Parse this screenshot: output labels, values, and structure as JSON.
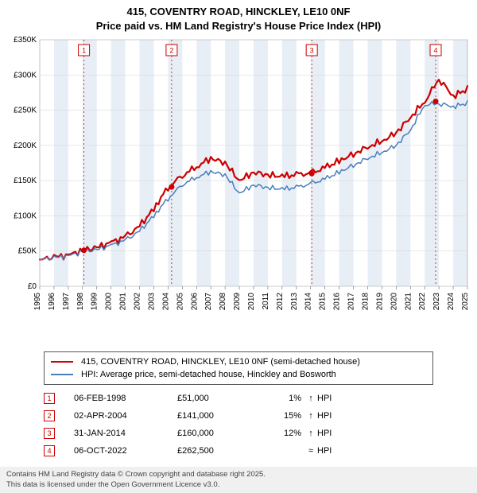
{
  "title_line1": "415, COVENTRY ROAD, HINCKLEY, LE10 0NF",
  "title_line2": "Price paid vs. HM Land Registry's House Price Index (HPI)",
  "chart": {
    "type": "line",
    "plot_bg": "#ffffff",
    "grid_color": "#d9d9d9",
    "band_color": "#e8eef6",
    "marker_border": "#cc0000",
    "marker_text": "#cc0000",
    "x_years": [
      1995,
      1996,
      1997,
      1998,
      1999,
      2000,
      2001,
      2002,
      2003,
      2004,
      2005,
      2006,
      2007,
      2008,
      2009,
      2010,
      2011,
      2012,
      2013,
      2014,
      2015,
      2016,
      2017,
      2018,
      2019,
      2020,
      2021,
      2022,
      2023,
      2024,
      2025
    ],
    "y_min": 0,
    "y_max": 350000,
    "y_tick_step": 50000,
    "y_tick_labels": [
      "£0",
      "£50K",
      "£100K",
      "£150K",
      "£200K",
      "£250K",
      "£300K",
      "£350K"
    ],
    "label_fontsize": 11,
    "tick_fontsize": 10,
    "series": [
      {
        "name": "price_paid",
        "color": "#cc0000",
        "width": 2.2,
        "points": [
          [
            1995,
            38000
          ],
          [
            1996,
            41000
          ],
          [
            1997,
            44000
          ],
          [
            1998,
            51000
          ],
          [
            1999,
            55000
          ],
          [
            2000,
            62000
          ],
          [
            2001,
            70000
          ],
          [
            2002,
            85000
          ],
          [
            2003,
            110000
          ],
          [
            2004,
            141000
          ],
          [
            2005,
            158000
          ],
          [
            2006,
            170000
          ],
          [
            2007,
            182000
          ],
          [
            2008,
            175000
          ],
          [
            2009,
            150000
          ],
          [
            2010,
            162000
          ],
          [
            2011,
            158000
          ],
          [
            2012,
            156000
          ],
          [
            2013,
            158000
          ],
          [
            2014,
            160000
          ],
          [
            2015,
            168000
          ],
          [
            2016,
            178000
          ],
          [
            2017,
            188000
          ],
          [
            2018,
            198000
          ],
          [
            2019,
            206000
          ],
          [
            2020,
            218000
          ],
          [
            2021,
            240000
          ],
          [
            2022,
            262500
          ],
          [
            2023,
            295000
          ],
          [
            2024,
            270000
          ],
          [
            2025,
            280000
          ]
        ]
      },
      {
        "name": "hpi",
        "color": "#4a7ebb",
        "width": 1.5,
        "points": [
          [
            1995,
            38000
          ],
          [
            1996,
            40000
          ],
          [
            1997,
            43000
          ],
          [
            1998,
            49000
          ],
          [
            1999,
            52000
          ],
          [
            2000,
            58000
          ],
          [
            2001,
            65000
          ],
          [
            2002,
            78000
          ],
          [
            2003,
            100000
          ],
          [
            2004,
            125000
          ],
          [
            2005,
            145000
          ],
          [
            2006,
            155000
          ],
          [
            2007,
            163000
          ],
          [
            2008,
            158000
          ],
          [
            2009,
            132000
          ],
          [
            2010,
            144000
          ],
          [
            2011,
            140000
          ],
          [
            2012,
            138000
          ],
          [
            2013,
            140000
          ],
          [
            2014,
            145000
          ],
          [
            2015,
            152000
          ],
          [
            2016,
            162000
          ],
          [
            2017,
            172000
          ],
          [
            2018,
            182000
          ],
          [
            2019,
            190000
          ],
          [
            2020,
            200000
          ],
          [
            2021,
            222000
          ],
          [
            2022,
            258000
          ],
          [
            2023,
            260000
          ],
          [
            2024,
            255000
          ],
          [
            2025,
            260000
          ]
        ]
      }
    ],
    "sale_markers": [
      {
        "n": "1",
        "year": 1998.1,
        "price": 51000
      },
      {
        "n": "2",
        "year": 2004.25,
        "price": 141000
      },
      {
        "n": "3",
        "year": 2014.08,
        "price": 160000
      },
      {
        "n": "4",
        "year": 2022.77,
        "price": 262500
      }
    ]
  },
  "legend": [
    {
      "color": "#cc0000",
      "width": 2.2,
      "label": "415, COVENTRY ROAD, HINCKLEY, LE10 0NF (semi-detached house)"
    },
    {
      "color": "#4a7ebb",
      "width": 1.5,
      "label": "HPI: Average price, semi-detached house, Hinckley and Bosworth"
    }
  ],
  "events": [
    {
      "n": "1",
      "date": "06-FEB-1998",
      "price": "£51,000",
      "pct": "1%",
      "arrow": "↑",
      "hpi": "HPI"
    },
    {
      "n": "2",
      "date": "02-APR-2004",
      "price": "£141,000",
      "pct": "15%",
      "arrow": "↑",
      "hpi": "HPI"
    },
    {
      "n": "3",
      "date": "31-JAN-2014",
      "price": "£160,000",
      "pct": "12%",
      "arrow": "↑",
      "hpi": "HPI"
    },
    {
      "n": "4",
      "date": "06-OCT-2022",
      "price": "£262,500",
      "pct": "",
      "arrow": "≈",
      "hpi": "HPI"
    }
  ],
  "footer_line1": "Contains HM Land Registry data © Crown copyright and database right 2025.",
  "footer_line2": "This data is licensed under the Open Government Licence v3.0."
}
